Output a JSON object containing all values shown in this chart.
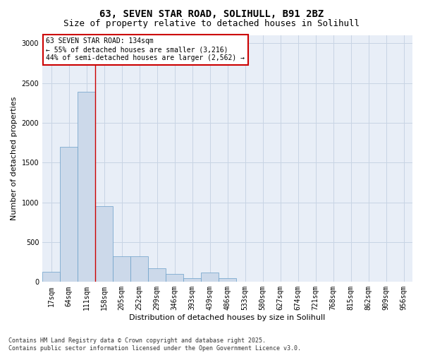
{
  "title_line1": "63, SEVEN STAR ROAD, SOLIHULL, B91 2BZ",
  "title_line2": "Size of property relative to detached houses in Solihull",
  "xlabel": "Distribution of detached houses by size in Solihull",
  "ylabel": "Number of detached properties",
  "bar_color": "#ccd9ea",
  "bar_edge_color": "#6a9fc8",
  "bins": [
    "17sqm",
    "64sqm",
    "111sqm",
    "158sqm",
    "205sqm",
    "252sqm",
    "299sqm",
    "346sqm",
    "393sqm",
    "439sqm",
    "486sqm",
    "533sqm",
    "580sqm",
    "627sqm",
    "674sqm",
    "721sqm",
    "768sqm",
    "815sqm",
    "862sqm",
    "909sqm",
    "956sqm"
  ],
  "values": [
    130,
    1700,
    2390,
    950,
    320,
    320,
    175,
    105,
    50,
    120,
    50,
    0,
    0,
    0,
    0,
    0,
    0,
    0,
    0,
    0,
    0
  ],
  "ylim": [
    0,
    3100
  ],
  "yticks": [
    0,
    500,
    1000,
    1500,
    2000,
    2500,
    3000
  ],
  "vline_x": 2.5,
  "annotation_text": "63 SEVEN STAR ROAD: 134sqm\n← 55% of detached houses are smaller (3,216)\n44% of semi-detached houses are larger (2,562) →",
  "annotation_box_color": "#ffffff",
  "annotation_box_edge": "#cc0000",
  "vline_color": "#cc0000",
  "footer_line1": "Contains HM Land Registry data © Crown copyright and database right 2025.",
  "footer_line2": "Contains public sector information licensed under the Open Government Licence v3.0.",
  "background_color": "#ffffff",
  "plot_bg_color": "#e8eef7",
  "grid_color": "#c8d4e4",
  "title_fontsize": 10,
  "subtitle_fontsize": 9,
  "axis_label_fontsize": 8,
  "tick_fontsize": 7,
  "annotation_fontsize": 7,
  "footer_fontsize": 6
}
